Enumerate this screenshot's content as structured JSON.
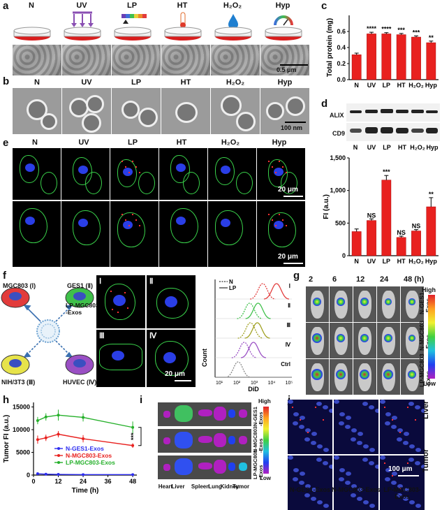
{
  "panels": {
    "a": "a",
    "b": "b",
    "c": "c",
    "d": "d",
    "e": "e",
    "f": "f",
    "g": "g",
    "h": "h",
    "i": "i",
    "j": "j"
  },
  "conditions": [
    "N",
    "UV",
    "LP",
    "HT",
    "H₂O₂",
    "Hyp"
  ],
  "scalebars": {
    "a": "0.5 μm",
    "b": "100 nm",
    "e1": "20 μm",
    "e2": "20 μm",
    "f": "20 μm",
    "j": "100 μm"
  },
  "blot": {
    "labels": [
      "ALIX",
      "CD9"
    ]
  },
  "panel_f": {
    "cells": [
      {
        "name": "MGC803 (Ⅰ)",
        "color": "#e23b3b"
      },
      {
        "name": "GES1 (Ⅱ)",
        "color": "#3fc04a"
      },
      {
        "name": "NIH/3T3 (Ⅲ)",
        "color": "#e7e34a"
      },
      {
        "name": "HUVEC (Ⅳ)",
        "color": "#9a4fc4"
      }
    ],
    "center": "LP-MGC803\n-Exos",
    "images": [
      "Ⅰ",
      "Ⅱ",
      "Ⅲ",
      "Ⅳ"
    ],
    "flow_legend": [
      "N",
      "LP"
    ],
    "flow_rows": [
      "Ⅰ",
      "Ⅱ",
      "Ⅲ",
      "Ⅳ",
      "Ctrl"
    ],
    "flow_xlabel": "DiD",
    "flow_ylabel": "Count",
    "flow_ticks": [
      "10¹",
      "10²",
      "10³",
      "10⁴",
      "10⁵"
    ]
  },
  "panel_g": {
    "times": [
      "2",
      "6",
      "12",
      "24",
      "48 (h)"
    ],
    "rows": [
      "N-GES1\n-Exos",
      "N-MGC803\n-Exos",
      "LP-MGC803\n-Exos"
    ],
    "scale_high": "High",
    "scale_low": "Low"
  },
  "panel_i": {
    "rows": [
      "N-GES1\n-Exos",
      "N-MGC803\n-Exos",
      "LP-MGC803\n-Exos"
    ],
    "organs": [
      "Heart",
      "Liver",
      "Spleen",
      "Lung",
      "Kidney",
      "Tumor"
    ],
    "scale_high": "High",
    "scale_low": "Low"
  },
  "panel_j": {
    "rows": [
      "Liver",
      "Tumor"
    ],
    "cols": [
      "N-GES1-Exos",
      "N-MGC803-Exos",
      "LP-MGC803-Exos"
    ]
  },
  "chart_data": [
    {
      "id": "c",
      "type": "bar",
      "categories": [
        "N",
        "UV",
        "LP",
        "HT",
        "H₂O₂",
        "Hyp"
      ],
      "values": [
        0.31,
        0.57,
        0.57,
        0.56,
        0.53,
        0.46
      ],
      "errors": [
        0.02,
        0.02,
        0.015,
        0.015,
        0.015,
        0.02
      ],
      "significance": [
        "",
        "****",
        "****",
        "***",
        "***",
        "**"
      ],
      "ylabel": "Total protein (mg)",
      "ylim": [
        0,
        0.8
      ],
      "yticks": [
        "0.0",
        "0.2",
        "0.4",
        "0.6"
      ],
      "color": "#e8211f"
    },
    {
      "id": "e",
      "type": "bar",
      "categories": [
        "N",
        "UV",
        "LP",
        "HT",
        "H₂O₂",
        "Hyp"
      ],
      "values": [
        370,
        540,
        1160,
        280,
        380,
        750
      ],
      "errors": [
        40,
        25,
        70,
        20,
        20,
        140
      ],
      "significance": [
        "",
        "NS",
        "***",
        "NS",
        "NS",
        "**"
      ],
      "ylabel": "FI (a.u.)",
      "ylim": [
        0,
        1500
      ],
      "yticks": [
        "0",
        "500",
        "1,000",
        "1,500"
      ],
      "color": "#e8211f"
    },
    {
      "id": "h",
      "type": "line",
      "x": [
        2,
        6,
        12,
        24,
        48
      ],
      "series": [
        {
          "name": "N-GES1-Exos",
          "values": [
            300,
            200,
            150,
            100,
            100
          ],
          "color": "#2d2df0"
        },
        {
          "name": "N-MGC803-Exos",
          "values": [
            7800,
            8200,
            9000,
            8000,
            6500
          ],
          "color": "#e8211f"
        },
        {
          "name": "LP-MGC803-Exos",
          "values": [
            12000,
            12800,
            13200,
            12700,
            10500
          ],
          "color": "#25b02a"
        }
      ],
      "significance": "***",
      "xlabel": "Time (h)",
      "ylabel": "Tumor FI (a.u.)",
      "xlim": [
        0,
        50
      ],
      "ylim": [
        0,
        16000
      ],
      "xticks": [
        "0",
        "12",
        "24",
        "36",
        "48"
      ],
      "yticks": [
        "0",
        "5000",
        "10000",
        "15000"
      ]
    }
  ]
}
